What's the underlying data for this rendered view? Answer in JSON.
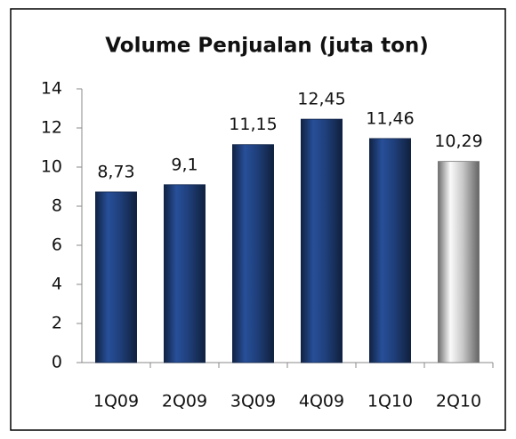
{
  "chart_data": {
    "type": "bar",
    "title": "Volume Penjualan (juta ton)",
    "categories": [
      "1Q09",
      "2Q09",
      "3Q09",
      "4Q09",
      "1Q10",
      "2Q10"
    ],
    "values": [
      8.73,
      9.1,
      11.15,
      12.45,
      11.46,
      10.29
    ],
    "value_labels": [
      "8,73",
      "9,1",
      "11,15",
      "12,45",
      "11,46",
      "10,29"
    ],
    "colors": [
      "#1f3f7a",
      "#1f3f7a",
      "#1f3f7a",
      "#1f3f7a",
      "#1f3f7a",
      "#c8c8c8"
    ],
    "ylim": [
      0,
      14
    ],
    "yticks": [
      0,
      2,
      4,
      6,
      8,
      10,
      12,
      14
    ],
    "grid": false
  }
}
